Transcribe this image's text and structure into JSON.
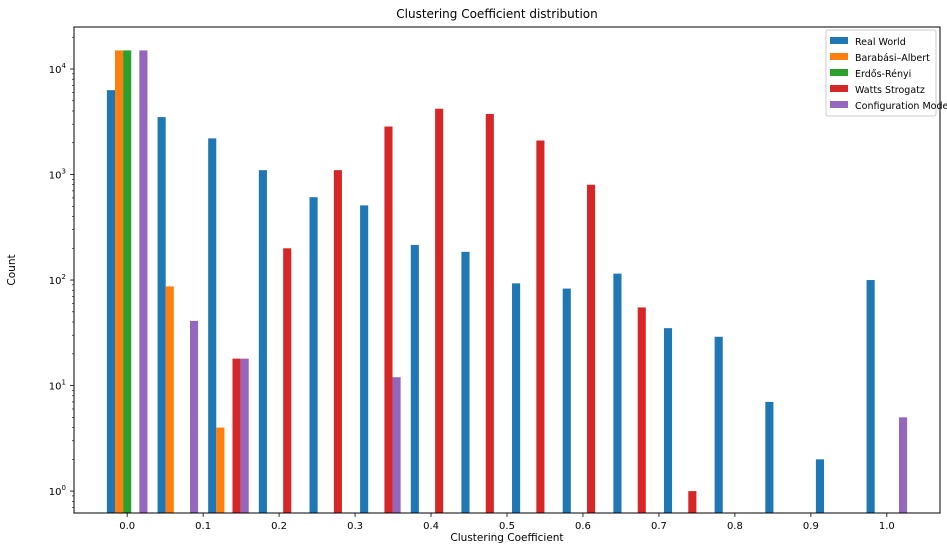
{
  "chart_data": {
    "type": "bar",
    "title": "Clustering Coefficient distribution",
    "xlabel": "Clustering Coefficient",
    "ylabel": "Count",
    "y_scale": "log",
    "ylim": [
      0.62,
      25000
    ],
    "xlim": [
      -0.07,
      1.07
    ],
    "x_ticks": [
      {
        "value": 0.0,
        "label": "0.0"
      },
      {
        "value": 0.1,
        "label": "0.1"
      },
      {
        "value": 0.2,
        "label": "0.2"
      },
      {
        "value": 0.3,
        "label": "0.3"
      },
      {
        "value": 0.4,
        "label": "0.4"
      },
      {
        "value": 0.5,
        "label": "0.5"
      },
      {
        "value": 0.6,
        "label": "0.6"
      },
      {
        "value": 0.7,
        "label": "0.7"
      },
      {
        "value": 0.8,
        "label": "0.8"
      },
      {
        "value": 0.9,
        "label": "0.9"
      },
      {
        "value": 1.0,
        "label": "1.0"
      }
    ],
    "y_ticks": [
      {
        "value": 1,
        "base": "10",
        "exp": "0"
      },
      {
        "value": 10,
        "base": "10",
        "exp": "1"
      },
      {
        "value": 100,
        "base": "10",
        "exp": "2"
      },
      {
        "value": 1000,
        "base": "10",
        "exp": "3"
      },
      {
        "value": 10000,
        "base": "10",
        "exp": "4"
      }
    ],
    "bin_width": 0.0667,
    "grid": false,
    "legend_position": "top-right",
    "series": [
      {
        "name": "Real World",
        "color": "#1f77b4",
        "x": [
          0.0,
          0.0667,
          0.1333,
          0.2,
          0.2667,
          0.3333,
          0.4,
          0.4667,
          0.5333,
          0.6,
          0.6667,
          0.7333,
          0.8,
          0.8667,
          0.9333,
          1.0
        ],
        "values": [
          6300,
          3500,
          2200,
          1100,
          610,
          510,
          215,
          185,
          93,
          83,
          115,
          35,
          29,
          7,
          2,
          100
        ]
      },
      {
        "name": "Barabási–Albert",
        "color": "#ff7f0e",
        "x": [
          0.0,
          0.0667,
          0.1333
        ],
        "values": [
          15000,
          87,
          4
        ]
      },
      {
        "name": "Erdős-Rényi",
        "color": "#2ca02c",
        "x": [
          0.0
        ],
        "values": [
          15000
        ]
      },
      {
        "name": "Watts Strogatz",
        "color": "#d62728",
        "x": [
          0.1333,
          0.2,
          0.2667,
          0.3333,
          0.4,
          0.4667,
          0.5333,
          0.6,
          0.6667,
          0.7333
        ],
        "values": [
          18,
          200,
          1100,
          2850,
          4200,
          3750,
          2100,
          800,
          55,
          1
        ]
      },
      {
        "name": "Configuration Model",
        "color": "#9467bd",
        "x": [
          0.0,
          0.0667,
          0.1333,
          0.3333,
          1.0
        ],
        "values": [
          15000,
          41,
          18,
          12,
          5
        ]
      }
    ]
  }
}
